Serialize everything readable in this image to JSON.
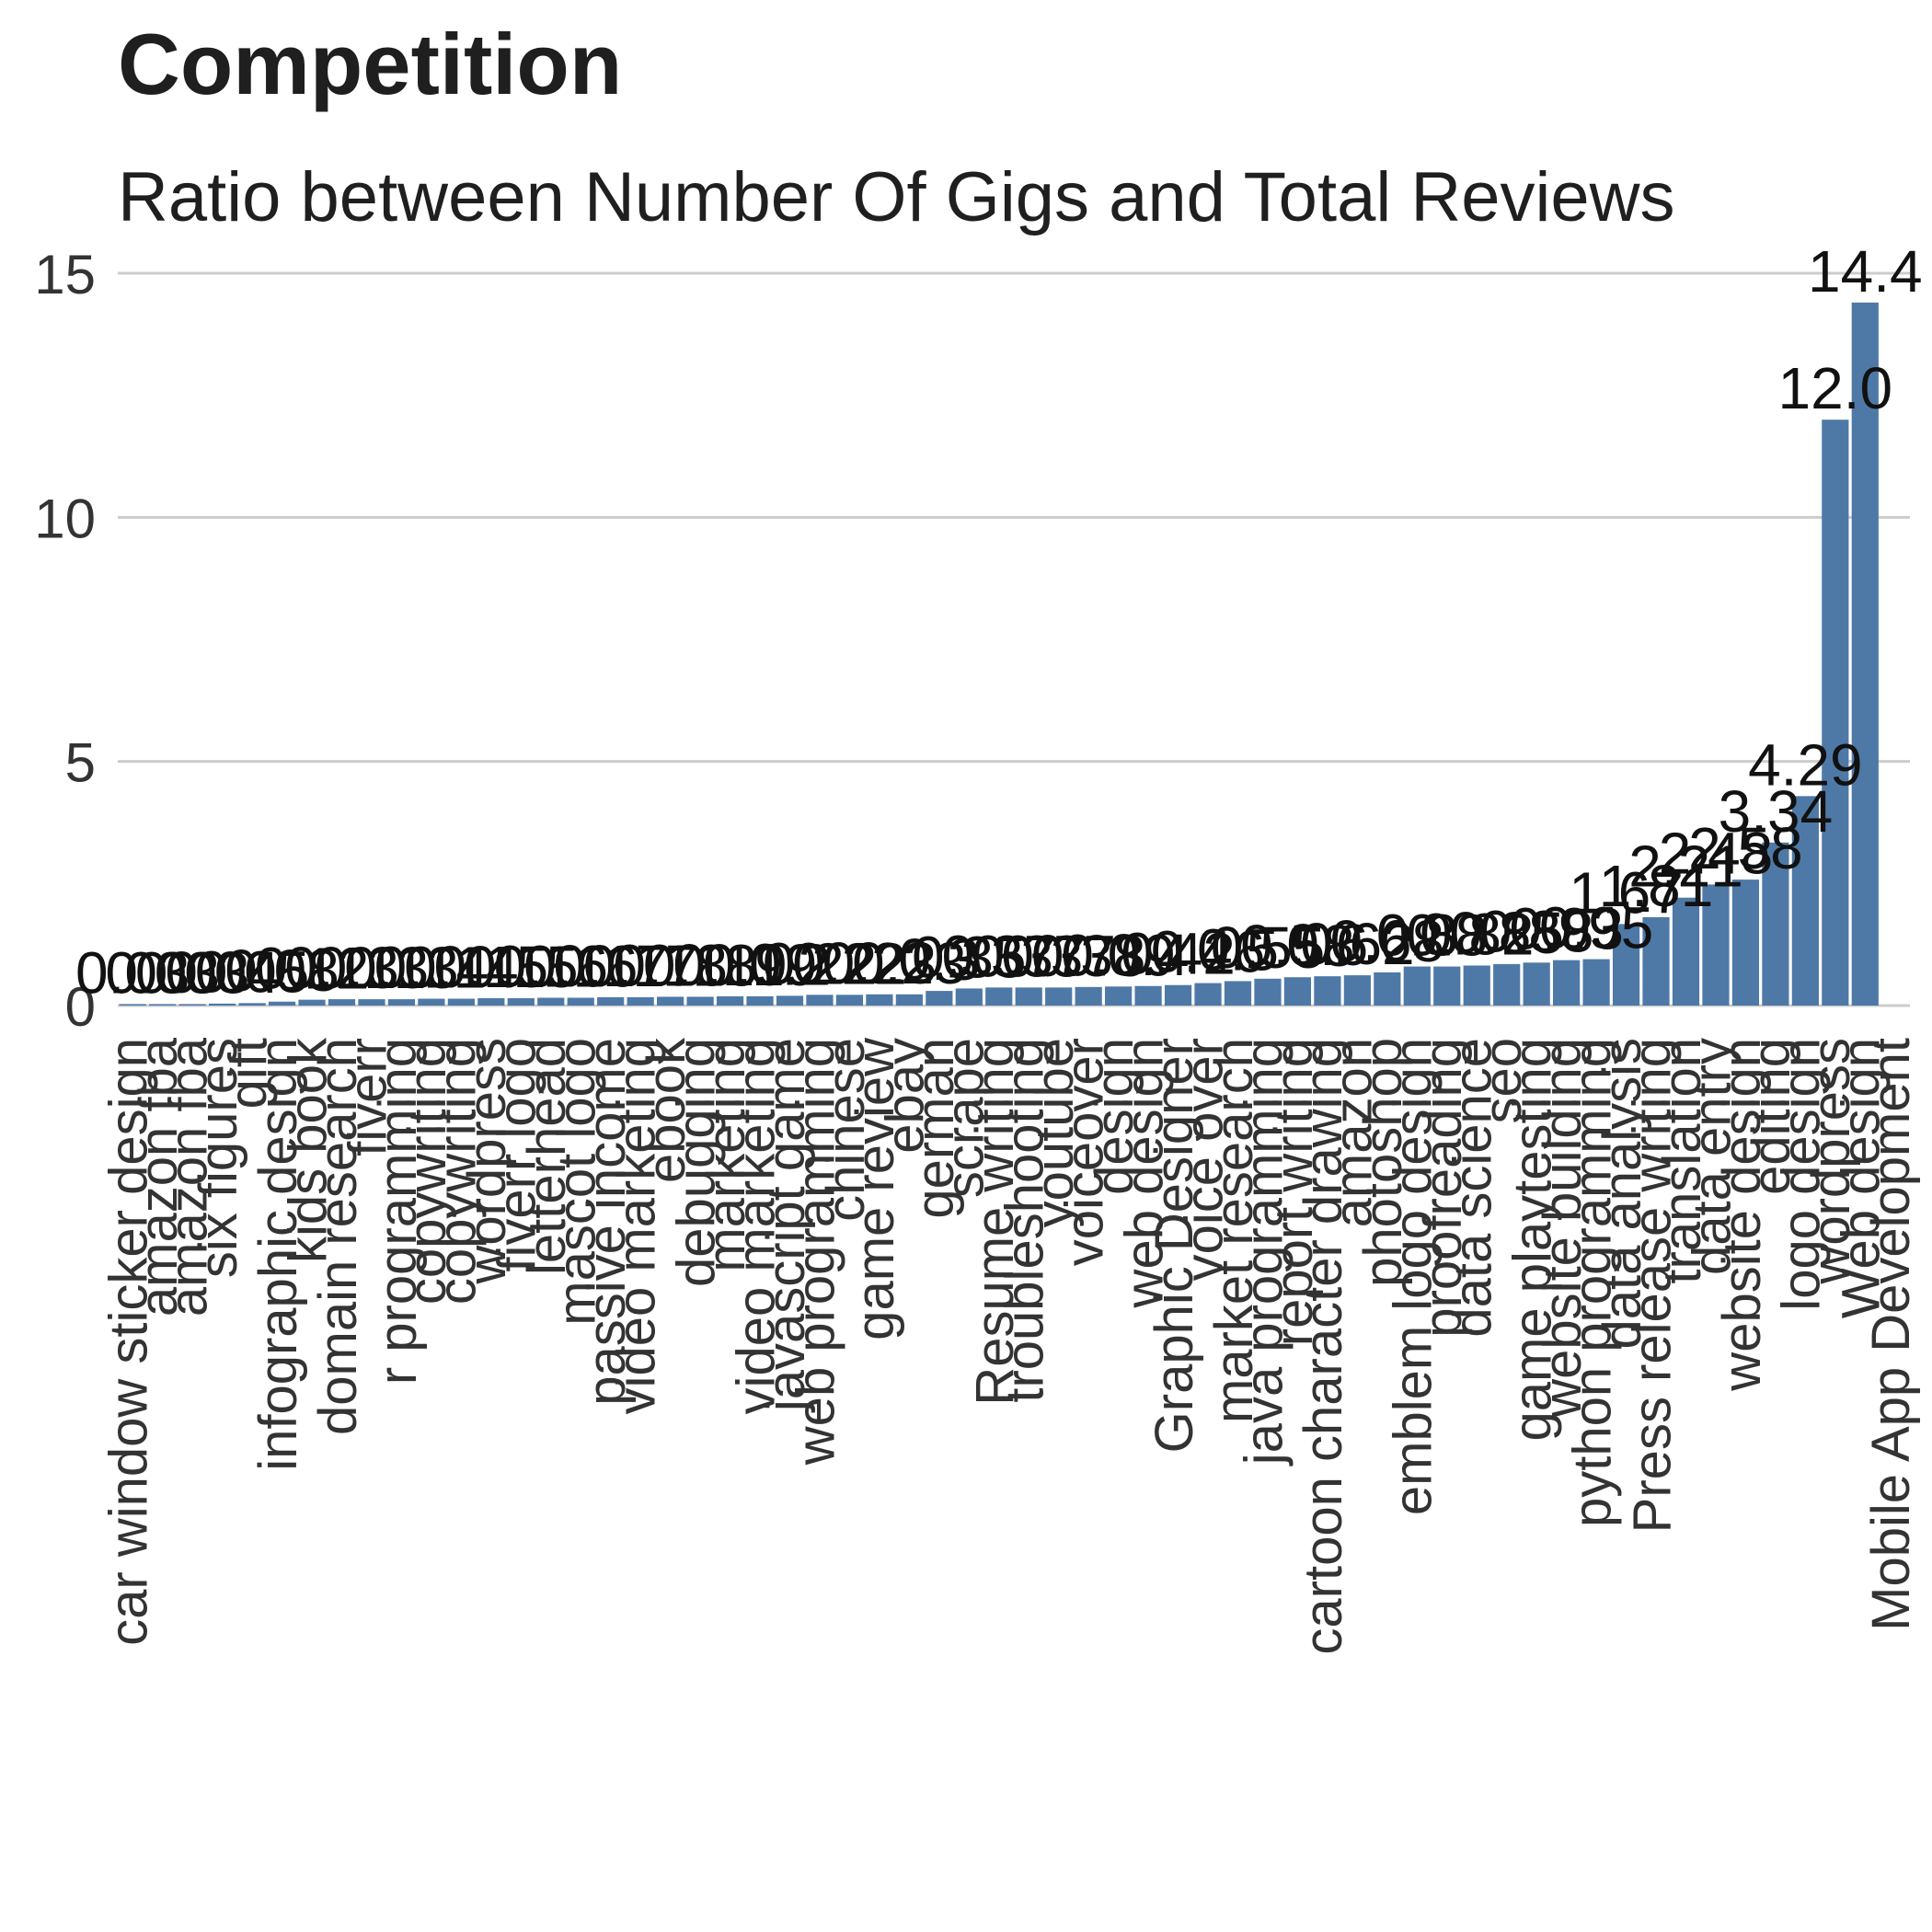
{
  "chart_data": {
    "type": "bar",
    "title": "Competition",
    "subtitle": "Ratio between Number Of Gigs and Total Reviews",
    "xlabel": "",
    "ylabel": "",
    "ylim": [
      0,
      15
    ],
    "yticks": [
      0,
      5,
      10,
      15
    ],
    "grid": true,
    "legend": "none",
    "bar_color": "#4e79a7",
    "categories": [
      "car window sticker design",
      "amazon fba",
      "amazon fba",
      "six figures",
      "gift",
      "infographic design",
      "kids book",
      "domain research",
      "fiverr",
      "r programming",
      "copywriting",
      "copywriting",
      "wordpress",
      "fiverr logo",
      "letterhead",
      "mascot logo",
      "passive income",
      "video marketing",
      "ebook",
      "debugging",
      "marketing",
      "video marketing",
      "javascript game",
      "web programming",
      "chinese",
      "game review",
      "ebay",
      "german",
      "scrape",
      "Resume writing",
      "troubleshooting",
      "youtube",
      "voiceover",
      "design",
      "web design",
      "Graphic Designer",
      "voice over",
      "market research",
      "java programming",
      "report writing",
      "cartoon character drawing",
      "amazon",
      "photoshop",
      "emblem logo design",
      "proofreading",
      "data science",
      "seo",
      "game playtesting",
      "website building",
      "python programming",
      "data analysis",
      "Press release writing",
      "translation",
      "data entry",
      "website design",
      "editing",
      "logo design",
      "wordpress",
      "Web design",
      "Mobile App Development"
    ],
    "values": [
      0.03,
      0.03,
      0.03,
      0.04,
      0.05,
      0.08,
      0.12,
      0.13,
      0.13,
      0.13,
      0.14,
      0.14,
      0.15,
      0.15,
      0.16,
      0.16,
      0.17,
      0.17,
      0.18,
      0.18,
      0.19,
      0.19,
      0.2,
      0.22,
      0.22,
      0.23,
      0.23,
      0.3,
      0.35,
      0.37,
      0.37,
      0.37,
      0.38,
      0.39,
      0.4,
      0.42,
      0.46,
      0.5,
      0.55,
      0.58,
      0.6,
      0.62,
      0.68,
      0.8,
      0.8,
      0.82,
      0.85,
      0.88,
      0.93,
      0.95,
      1.67,
      1.81,
      2.21,
      2.48,
      2.58,
      3.34,
      4.29,
      12.0,
      14.4,
      null
    ],
    "data_labels": [
      "0.03",
      "0.03",
      "0.03",
      "0.04",
      "0.05",
      "0.08",
      "0.12",
      "0.13",
      "0.13",
      "0.13",
      "0.14",
      "0.14",
      "0.15",
      "0.15",
      "0.16",
      "0.16",
      "0.17",
      "0.17",
      "0.18",
      "0.18",
      "0.19",
      "0.19",
      "0.2",
      "0.22",
      "0.22",
      "0.23",
      "0.23",
      "0.3",
      "0.35",
      "0.37",
      "0.37",
      "0.37",
      "0.38",
      "0.39",
      "0.4",
      "0.42",
      "0.46",
      "0.5",
      "0.55",
      "0.58",
      "0.6",
      "0.62",
      "0.68",
      "0.8",
      "0.8",
      "0.82",
      "0.85",
      "0.88",
      "0.93",
      "0.95",
      "1.67",
      "1.81",
      "2.21",
      "2.48",
      "2.58",
      "3.34",
      "4.29",
      "12.0",
      "14.4",
      ""
    ]
  }
}
